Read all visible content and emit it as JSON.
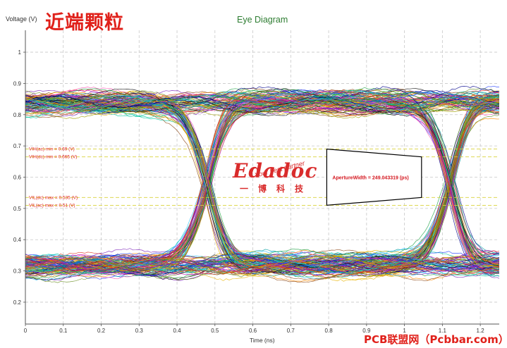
{
  "cn_title": "近端颗粒",
  "footer_watermark": "PCB联盟网（Pcbbar.com）",
  "logo": {
    "brand": "Edadoc",
    "tagline": "Your best partner",
    "cn": "一博科技",
    "color": "#d92b2b"
  },
  "chart_data": {
    "type": "line",
    "title": "Eye Diagram",
    "xlabel": "Time (ns)",
    "ylabel": "Voltage (V)",
    "xlim": [
      0,
      1.25
    ],
    "ylim": [
      0.13,
      1.07
    ],
    "x_ticks": [
      "0",
      "0.1",
      "0.2",
      "0.3",
      "0.4",
      "0.5",
      "0.6",
      "0.7",
      "0.8",
      "0.9",
      "1",
      "1.1",
      "1.2"
    ],
    "y_ticks": [
      "0.2",
      "0.3",
      "0.4",
      "0.5",
      "0.6",
      "0.7",
      "0.8",
      "0.9",
      "1"
    ],
    "grid": true,
    "unit_interval_ns": 0.64,
    "crossings_ns": [
      0.48,
      1.12
    ],
    "high_level_v": 0.84,
    "low_level_v": 0.32,
    "thresholds": [
      {
        "label": "VIH(ac) min = 0.69 (V)",
        "value": 0.69
      },
      {
        "label": "VIH(dc) min = 0.665 (V)",
        "value": 0.665
      },
      {
        "label": "VIL(dc) max = 0.535 (V)",
        "value": 0.535
      },
      {
        "label": "VIL(ac) max = 0.51 (V)",
        "value": 0.51
      }
    ],
    "aperture": {
      "label": "ApertureWidth = 249.043319 (ps)",
      "value_ps": 249.043319,
      "polygon": [
        [
          0.795,
          0.69
        ],
        [
          1.045,
          0.665
        ],
        [
          1.045,
          0.535
        ],
        [
          0.795,
          0.51
        ]
      ]
    },
    "colors": {
      "title": "#2e7d32",
      "threshold_line": "#d9d23a",
      "threshold_text": "#e0201a",
      "grid": "#c8c8c8",
      "trace_palette": [
        "#1f3cff",
        "#00a0a0",
        "#e8b400",
        "#7a1fb8",
        "#1aa040",
        "#e0301e",
        "#0a0a0a",
        "#ff8a00",
        "#ff4fb0",
        "#2ec4ff",
        "#8b4513",
        "#6b8e23",
        "#00008b",
        "#b000b0",
        "#00c8a0",
        "#a0a000"
      ]
    }
  }
}
